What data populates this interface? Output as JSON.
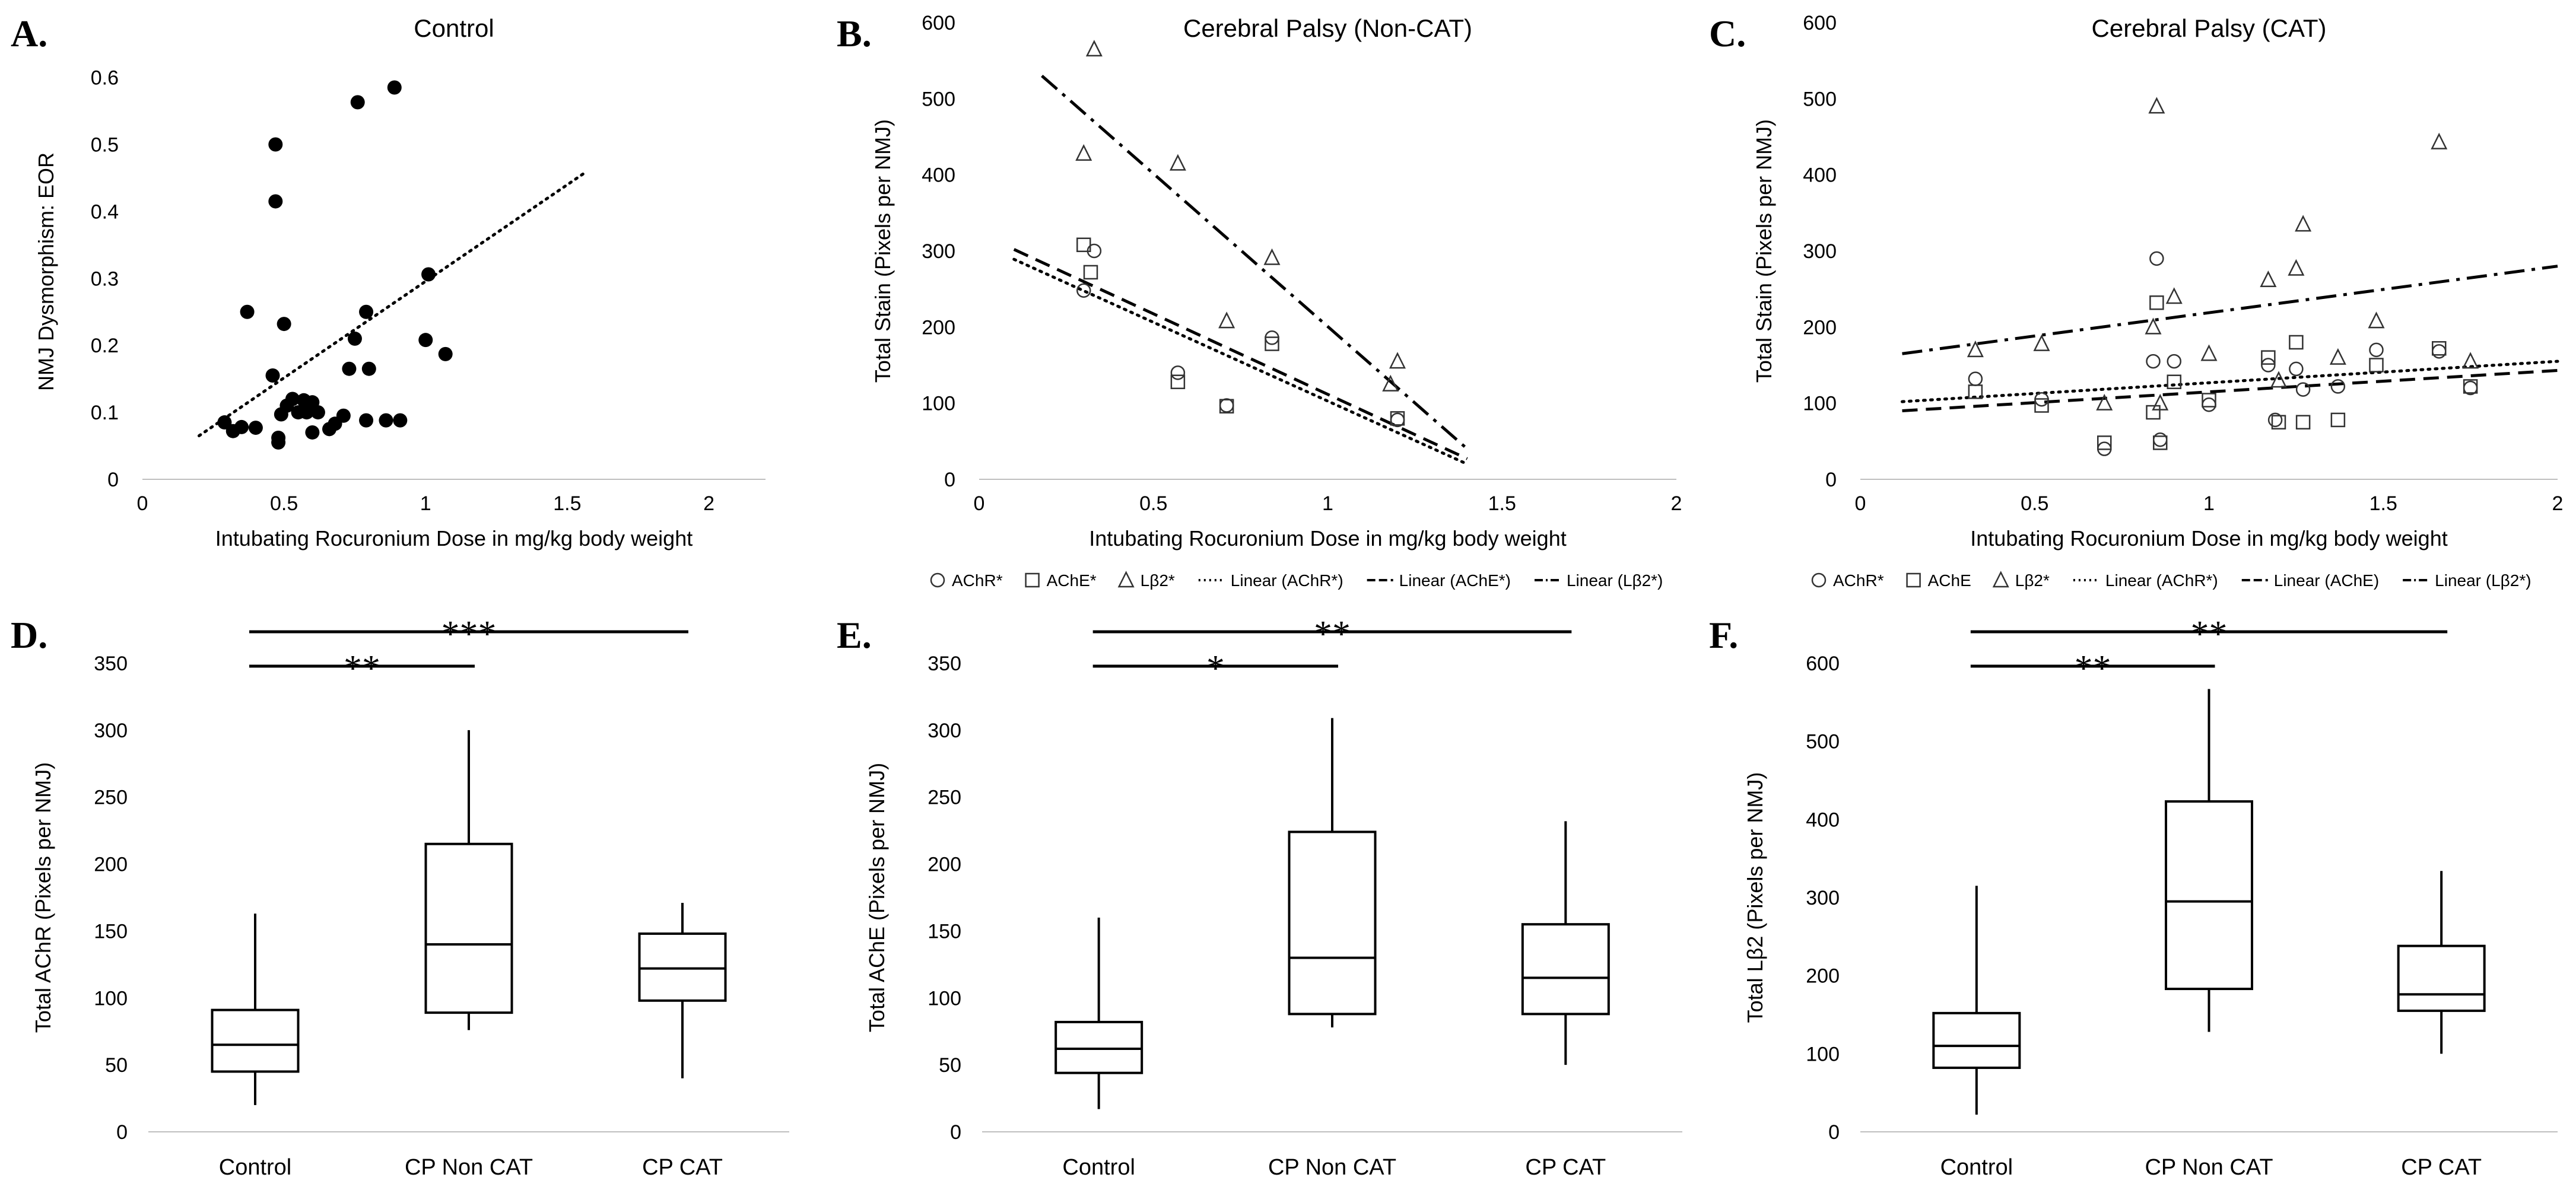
{
  "figure": {
    "panels": [
      {
        "id": "A",
        "letter": "A."
      },
      {
        "id": "B",
        "letter": "B."
      },
      {
        "id": "C",
        "letter": "C."
      },
      {
        "id": "D",
        "letter": "D."
      },
      {
        "id": "E",
        "letter": "E."
      },
      {
        "id": "F",
        "letter": "F."
      }
    ]
  },
  "chart_data": [
    {
      "id": "A",
      "type": "scatter",
      "title": "Control",
      "xlabel": "Intubating Rocuronium Dose in mg/kg body weight",
      "ylabel": "NMJ Dysmorphism: EOR",
      "xlim": [
        0,
        2.2
      ],
      "ylim": [
        0,
        0.62
      ],
      "xticks": [
        0,
        0.5,
        1,
        1.5,
        2
      ],
      "xtick_labels": [
        "0",
        "0.5",
        "1",
        "1.5",
        "2"
      ],
      "yticks": [
        0,
        0.1,
        0.2,
        0.3,
        0.4,
        0.5,
        0.6
      ],
      "ytick_labels": [
        "0",
        "0.1",
        "0.2",
        "0.3",
        "0.4",
        "0.5",
        "0.6"
      ],
      "series": [
        {
          "name": "Control",
          "marker": "filled-circle",
          "color": "#000000",
          "points": [
            [
              0.29,
              0.085
            ],
            [
              0.32,
              0.072
            ],
            [
              0.35,
              0.078
            ],
            [
              0.37,
              0.25
            ],
            [
              0.4,
              0.077
            ],
            [
              0.46,
              0.155
            ],
            [
              0.47,
              0.5
            ],
            [
              0.47,
              0.415
            ],
            [
              0.48,
              0.062
            ],
            [
              0.48,
              0.055
            ],
            [
              0.49,
              0.097
            ],
            [
              0.5,
              0.232
            ],
            [
              0.51,
              0.11
            ],
            [
              0.53,
              0.12
            ],
            [
              0.55,
              0.1
            ],
            [
              0.57,
              0.118
            ],
            [
              0.58,
              0.1
            ],
            [
              0.6,
              0.115
            ],
            [
              0.6,
              0.07
            ],
            [
              0.62,
              0.1
            ],
            [
              0.66,
              0.075
            ],
            [
              0.68,
              0.083
            ],
            [
              0.71,
              0.095
            ],
            [
              0.73,
              0.165
            ],
            [
              0.75,
              0.21
            ],
            [
              0.76,
              0.563
            ],
            [
              0.79,
              0.25
            ],
            [
              0.8,
              0.165
            ],
            [
              0.79,
              0.088
            ],
            [
              0.86,
              0.088
            ],
            [
              0.89,
              0.585
            ],
            [
              0.91,
              0.088
            ],
            [
              1.0,
              0.208
            ],
            [
              1.01,
              0.306
            ],
            [
              1.07,
              0.187
            ]
          ]
        }
      ],
      "trendlines": [
        {
          "name": "Linear (Control)",
          "style": "dotted",
          "x": [
            0.2,
            1.57
          ],
          "y": [
            0.065,
            0.46
          ]
        }
      ]
    },
    {
      "id": "B",
      "type": "scatter",
      "title": "Cerebral Palsy (Non-CAT)",
      "xlabel": "Intubating Rocuronium Dose in mg/kg body weight",
      "ylabel": "Total Stain (Pixels per NMJ)",
      "xlim": [
        0,
        2
      ],
      "ylim": [
        0,
        600
      ],
      "xticks": [
        0,
        0.5,
        1,
        1.5,
        2
      ],
      "xtick_labels": [
        "0",
        "0.5",
        "1",
        "1.5",
        "2"
      ],
      "yticks": [
        0,
        100,
        200,
        300,
        400,
        500,
        600
      ],
      "ytick_labels": [
        "0",
        "100",
        "200",
        "300",
        "400",
        "500",
        "600"
      ],
      "series": [
        {
          "name": "AChR*",
          "marker": "circle",
          "points": [
            [
              0.3,
              248
            ],
            [
              0.33,
              300
            ],
            [
              0.57,
              140
            ],
            [
              0.71,
              97
            ],
            [
              0.84,
              186
            ],
            [
              1.2,
              78
            ]
          ]
        },
        {
          "name": "AChE*",
          "marker": "square",
          "points": [
            [
              0.3,
              308
            ],
            [
              0.32,
              272
            ],
            [
              0.57,
              128
            ],
            [
              0.71,
              96
            ],
            [
              0.84,
              178
            ],
            [
              1.2,
              80
            ]
          ]
        },
        {
          "name": "Lβ2*",
          "marker": "triangle",
          "points": [
            [
              0.3,
              428
            ],
            [
              0.33,
              565
            ],
            [
              0.57,
              415
            ],
            [
              0.71,
              208
            ],
            [
              0.84,
              291
            ],
            [
              1.18,
              125
            ],
            [
              1.2,
              155
            ]
          ]
        }
      ],
      "trendlines": [
        {
          "name": "Linear (AChR*)",
          "style": "dotted",
          "x": [
            0.1,
            1.4
          ],
          "y": [
            289,
            20
          ]
        },
        {
          "name": "Linear (AChE*)",
          "style": "dashed",
          "x": [
            0.1,
            1.4
          ],
          "y": [
            302,
            27
          ]
        },
        {
          "name": "Linear (Lβ2*)",
          "style": "dash-dot",
          "x": [
            0.18,
            1.4
          ],
          "y": [
            530,
            40
          ]
        }
      ],
      "legend": [
        "AChR*",
        "AChE*",
        "Lβ2*",
        "Linear (AChR*)",
        "Linear (AChE*)",
        "Linear (Lβ2*)"
      ]
    },
    {
      "id": "C",
      "type": "scatter",
      "title": "Cerebral Palsy (CAT)",
      "xlabel": "Intubating Rocuronium Dose in mg/kg body weight",
      "ylabel": "Total Stain (Pixels per NMJ)",
      "xlim": [
        0,
        2
      ],
      "ylim": [
        0,
        600
      ],
      "xticks": [
        0,
        0.5,
        1,
        1.5,
        2
      ],
      "xtick_labels": [
        "0",
        "0.5",
        "1",
        "1.5",
        "2"
      ],
      "yticks": [
        0,
        100,
        200,
        300,
        400,
        500,
        600
      ],
      "ytick_labels": [
        "0",
        "100",
        "200",
        "300",
        "400",
        "500",
        "600"
      ],
      "series": [
        {
          "name": "AChR*",
          "marker": "circle",
          "points": [
            [
              0.33,
              132
            ],
            [
              0.52,
              105
            ],
            [
              0.7,
              40
            ],
            [
              0.84,
              155
            ],
            [
              0.85,
              290
            ],
            [
              0.86,
              52
            ],
            [
              0.9,
              155
            ],
            [
              1.0,
              98
            ],
            [
              1.17,
              150
            ],
            [
              1.19,
              78
            ],
            [
              1.25,
              145
            ],
            [
              1.27,
              118
            ],
            [
              1.37,
              122
            ],
            [
              1.48,
              170
            ],
            [
              1.66,
              168
            ],
            [
              1.75,
              120
            ]
          ]
        },
        {
          "name": "AChE",
          "marker": "square",
          "points": [
            [
              0.33,
              115
            ],
            [
              0.52,
              97
            ],
            [
              0.7,
              48
            ],
            [
              0.84,
              88
            ],
            [
              0.85,
              232
            ],
            [
              0.86,
              48
            ],
            [
              0.9,
              128
            ],
            [
              1.0,
              104
            ],
            [
              1.17,
              160
            ],
            [
              1.2,
              75
            ],
            [
              1.25,
              180
            ],
            [
              1.27,
              75
            ],
            [
              1.37,
              78
            ],
            [
              1.48,
              150
            ],
            [
              1.66,
              172
            ],
            [
              1.75,
              122
            ]
          ]
        },
        {
          "name": "Lβ2*",
          "marker": "triangle",
          "points": [
            [
              0.33,
              170
            ],
            [
              0.52,
              178
            ],
            [
              0.7,
              100
            ],
            [
              0.84,
              200
            ],
            [
              0.85,
              490
            ],
            [
              0.86,
              100
            ],
            [
              0.9,
              240
            ],
            [
              1.0,
              165
            ],
            [
              1.17,
              262
            ],
            [
              1.2,
              130
            ],
            [
              1.25,
              277
            ],
            [
              1.27,
              335
            ],
            [
              1.37,
              160
            ],
            [
              1.48,
              208
            ],
            [
              1.66,
              443
            ],
            [
              1.75,
              155
            ]
          ]
        }
      ],
      "trendlines": [
        {
          "name": "Linear (AChR*)",
          "style": "dotted",
          "x": [
            0.12,
            2.0
          ],
          "y": [
            102,
            155
          ]
        },
        {
          "name": "Linear (AChE)",
          "style": "dashed",
          "x": [
            0.12,
            2.0
          ],
          "y": [
            90,
            143
          ]
        },
        {
          "name": "Linear (Lβ2*)",
          "style": "dash-dot",
          "x": [
            0.12,
            2.0
          ],
          "y": [
            165,
            280
          ]
        }
      ],
      "legend": [
        "AChR*",
        "AChE",
        "Lβ2*",
        "Linear (AChR*)",
        "Linear (AChE)",
        "Linear (Lβ2*)"
      ]
    },
    {
      "id": "D",
      "type": "box",
      "ylabel": "Total AChR (Pixels per NMJ)",
      "ylim": [
        0,
        350
      ],
      "yticks": [
        0,
        50,
        100,
        150,
        200,
        250,
        300,
        350
      ],
      "ytick_labels": [
        "0",
        "50",
        "100",
        "150",
        "200",
        "250",
        "300",
        "350"
      ],
      "categories": [
        "Control",
        "CP Non CAT",
        "CP CAT"
      ],
      "boxes": [
        {
          "min": 20,
          "q1": 45,
          "median": 65,
          "q3": 91,
          "max": 163
        },
        {
          "min": 76,
          "q1": 89,
          "median": 140,
          "q3": 215,
          "max": 300
        },
        {
          "min": 40,
          "q1": 98,
          "median": 122,
          "q3": 148,
          "max": 171
        }
      ],
      "significance": [
        {
          "from": 0,
          "to": 1,
          "label": "**"
        },
        {
          "from": 0,
          "to": 2,
          "label": "***"
        }
      ]
    },
    {
      "id": "E",
      "type": "box",
      "ylabel": "Total AChE (Pixels per NMJ)",
      "ylim": [
        0,
        350
      ],
      "yticks": [
        0,
        50,
        100,
        150,
        200,
        250,
        300,
        350
      ],
      "ytick_labels": [
        "0",
        "50",
        "100",
        "150",
        "200",
        "250",
        "300",
        "350"
      ],
      "categories": [
        "Control",
        "CP Non CAT",
        "CP CAT"
      ],
      "boxes": [
        {
          "min": 17,
          "q1": 44,
          "median": 62,
          "q3": 82,
          "max": 160
        },
        {
          "min": 78,
          "q1": 88,
          "median": 130,
          "q3": 224,
          "max": 309
        },
        {
          "min": 50,
          "q1": 88,
          "median": 115,
          "q3": 155,
          "max": 232
        }
      ],
      "significance": [
        {
          "from": 0,
          "to": 1,
          "label": "*"
        },
        {
          "from": 0,
          "to": 2,
          "label": "**"
        }
      ]
    },
    {
      "id": "F",
      "type": "box",
      "ylabel": "Total Lβ2 (Pixels per NMJ)",
      "ylim": [
        0,
        600
      ],
      "yticks": [
        0,
        100,
        200,
        300,
        400,
        500,
        600
      ],
      "ytick_labels": [
        "0",
        "100",
        "200",
        "300",
        "400",
        "500",
        "600"
      ],
      "categories": [
        "Control",
        "CP Non CAT",
        "CP CAT"
      ],
      "boxes": [
        {
          "min": 22,
          "q1": 82,
          "median": 110,
          "q3": 152,
          "max": 315
        },
        {
          "min": 128,
          "q1": 183,
          "median": 295,
          "q3": 423,
          "max": 567
        },
        {
          "min": 100,
          "q1": 155,
          "median": 176,
          "q3": 238,
          "max": 334
        }
      ],
      "significance": [
        {
          "from": 0,
          "to": 1,
          "label": "**"
        },
        {
          "from": 0,
          "to": 2,
          "label": "**"
        }
      ]
    }
  ]
}
